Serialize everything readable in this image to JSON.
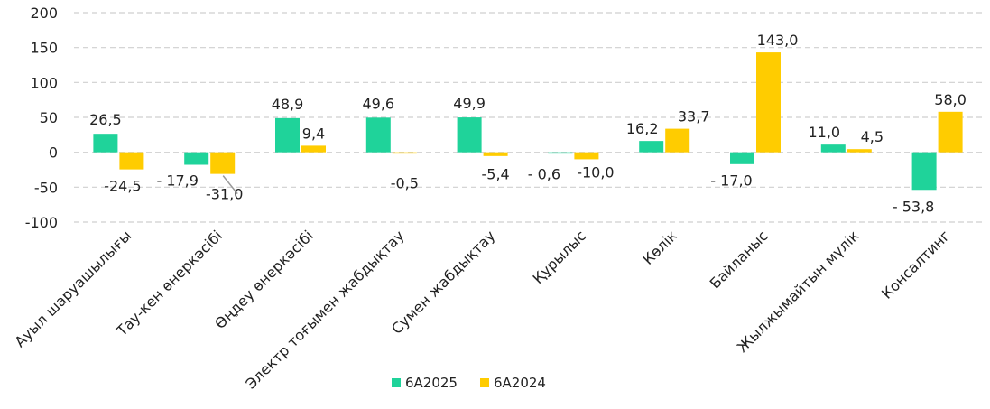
{
  "chart_data": {
    "type": "bar",
    "categories": [
      "Ауыл шаруашылығы",
      "Тау-кен өнеркәсібі",
      "Өңдеу өнеркәсібі",
      "Электр тоғымен жабдықтау",
      "Сумен жабдықтау",
      "Құрылыс",
      "Көлік",
      "Байланыс",
      "Жылжымайтын мүлік",
      "Консалтинг"
    ],
    "series": [
      {
        "name": "6А2025",
        "color": "#1fd39a",
        "values": [
          26.5,
          -17.9,
          48.9,
          49.6,
          49.9,
          -0.6,
          16.2,
          -17.0,
          11.0,
          -53.8
        ],
        "labels": [
          "26,5",
          "-   17,9",
          "48,9",
          "49,6",
          "49,9",
          "-   0,6",
          "16,2",
          "-   17,0",
          "11,0",
          "-   53,8"
        ]
      },
      {
        "name": "6А2024",
        "color": "#ffcc00",
        "values": [
          -24.5,
          -31.0,
          9.4,
          -0.5,
          -5.4,
          -10.0,
          33.7,
          143.0,
          4.5,
          58.0
        ],
        "labels": [
          "-24,5",
          "-31,0",
          "9,4",
          "-0,5",
          "-5,4",
          "-10,0",
          "33,7",
          "143,0",
          "4,5",
          "58,0"
        ]
      }
    ],
    "ylim": [
      -100,
      200
    ],
    "yticks": [
      200,
      150,
      100,
      50,
      0,
      -50,
      -100
    ],
    "ytick_labels": [
      "200",
      "150",
      "100",
      "50",
      "0",
      "-50",
      "-100"
    ],
    "grid": true,
    "legend": "bottom"
  }
}
